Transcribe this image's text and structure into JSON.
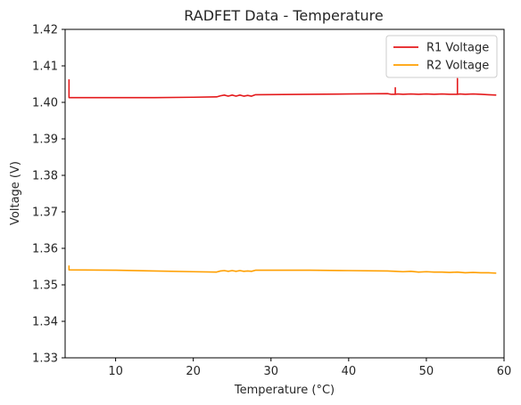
{
  "chart_data": {
    "type": "line",
    "title": "RADFET Data - Temperature",
    "xlabel": "Temperature (°C)",
    "ylabel": "Voltage (V)",
    "xlim": [
      3.5,
      60
    ],
    "ylim": [
      1.33,
      1.42
    ],
    "xticks": [
      10,
      20,
      30,
      40,
      50,
      60
    ],
    "yticks": [
      1.33,
      1.34,
      1.35,
      1.36,
      1.37,
      1.38,
      1.39,
      1.4,
      1.41,
      1.42
    ],
    "ytick_labels": [
      "1.33",
      "1.34",
      "1.35",
      "1.36",
      "1.37",
      "1.38",
      "1.39",
      "1.40",
      "1.41",
      "1.42"
    ],
    "grid": false,
    "legend": "top-right",
    "series": [
      {
        "name": "R1 Voltage",
        "color": "#e41a1c",
        "x": [
          4.0,
          4.0,
          4.0,
          10,
          15,
          20,
          23,
          23.5,
          24,
          24.5,
          25,
          25.5,
          26,
          26.5,
          27,
          27.5,
          28,
          35,
          40,
          45,
          45.5,
          46,
          46,
          46,
          46.3,
          47,
          48,
          49,
          50,
          51,
          52,
          53,
          54,
          54,
          54,
          54.3,
          55,
          56,
          57,
          58,
          59
        ],
        "y": [
          1.4063,
          1.4015,
          1.4013,
          1.4013,
          1.4013,
          1.4014,
          1.4015,
          1.4018,
          1.402,
          1.4017,
          1.402,
          1.4017,
          1.402,
          1.4017,
          1.4019,
          1.4017,
          1.4021,
          1.4022,
          1.4023,
          1.4024,
          1.4022,
          1.4022,
          1.404,
          1.4022,
          1.4023,
          1.4022,
          1.4023,
          1.4022,
          1.4023,
          1.4022,
          1.4023,
          1.4022,
          1.4022,
          1.4065,
          1.4022,
          1.4023,
          1.4022,
          1.4023,
          1.4022,
          1.4021,
          1.402
        ]
      },
      {
        "name": "R2 Voltage",
        "color": "#ff9f00",
        "x": [
          4.0,
          4.0,
          4.0,
          10,
          15,
          20,
          23,
          23.5,
          24,
          24.5,
          25,
          25.5,
          26,
          26.5,
          27,
          27.5,
          28,
          35,
          40,
          45,
          46,
          47,
          48,
          49,
          50,
          51,
          52,
          53,
          54,
          55,
          56,
          57,
          58,
          59
        ],
        "y": [
          1.3553,
          1.3542,
          1.3541,
          1.354,
          1.3538,
          1.3536,
          1.3535,
          1.3538,
          1.3539,
          1.3537,
          1.3539,
          1.3537,
          1.3539,
          1.3537,
          1.3538,
          1.3537,
          1.354,
          1.354,
          1.3539,
          1.3538,
          1.3537,
          1.3536,
          1.3537,
          1.3535,
          1.3536,
          1.3535,
          1.3535,
          1.3534,
          1.3535,
          1.3533,
          1.3534,
          1.3533,
          1.3533,
          1.3532
        ]
      }
    ]
  }
}
